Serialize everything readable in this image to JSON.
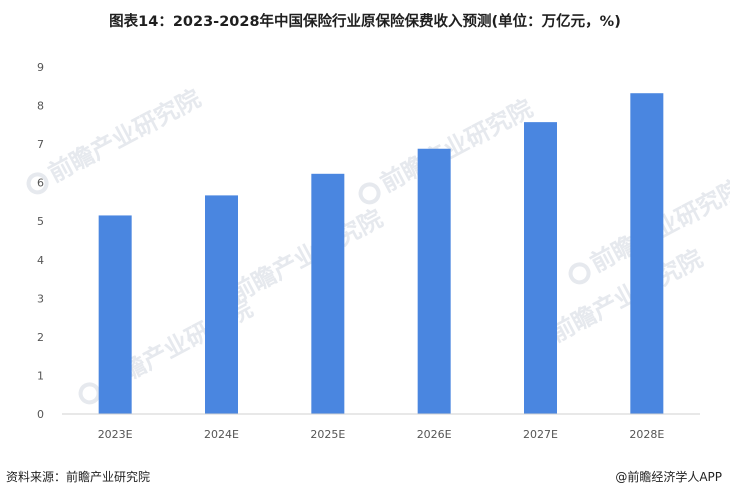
{
  "title": "图表14：2023-2028年中国保险行业原保险保费收入预测(单位：万亿元，%)",
  "source": "资料来源：前瞻产业研究院",
  "credit": "@前瞻经济学人APP",
  "watermark": {
    "text": "前瞻产业研究院",
    "color": "#e6e9ee"
  },
  "chart_data": {
    "type": "bar",
    "categories": [
      "2023E",
      "2024E",
      "2025E",
      "2026E",
      "2027E",
      "2028E"
    ],
    "values": [
      5.15,
      5.67,
      6.23,
      6.88,
      7.57,
      8.32
    ],
    "ylim": [
      0,
      9
    ],
    "yticks": [
      0,
      1,
      2,
      3,
      4,
      5,
      6,
      7,
      8,
      9
    ],
    "bar_color": "#4a86e0",
    "grid": false,
    "legend": "none"
  }
}
